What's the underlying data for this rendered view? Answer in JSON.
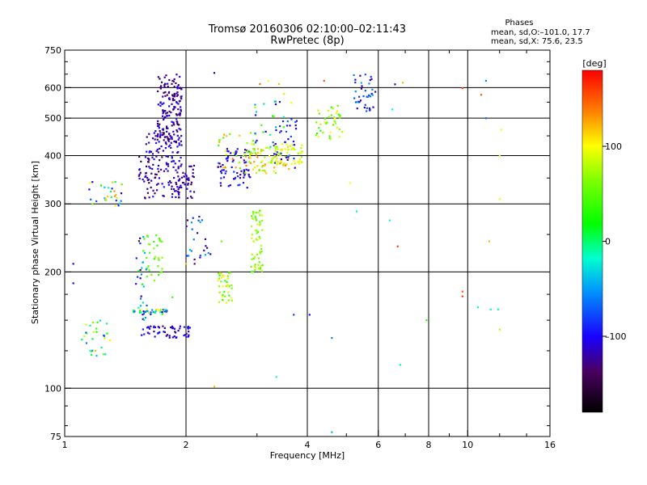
{
  "chart_data": {
    "type": "scatter",
    "title": "Tromsø 20160306 02:10:00–02:11:43",
    "subtitle": "RwPretec (8p)",
    "xlabel": "Frequency [MHz]",
    "ylabel": "Stationary phase Virtual Height [km]",
    "xscale": "log",
    "yscale": "log",
    "xlim": [
      1,
      16
    ],
    "ylim": [
      75,
      750
    ],
    "xticks": [
      1,
      2,
      4,
      6,
      8,
      10,
      16
    ],
    "xtick_labels": [
      "1",
      "2",
      "4",
      "6",
      "8",
      "10",
      "16"
    ],
    "xgrid": [
      2,
      4,
      6,
      8,
      10
    ],
    "yticks": [
      75,
      100,
      200,
      300,
      400,
      500,
      600,
      750
    ],
    "ytick_labels": [
      "75",
      "100",
      "200",
      "300",
      "400",
      "500",
      "600",
      "750"
    ],
    "ygrid": [
      100,
      200,
      300,
      400,
      500,
      600
    ],
    "grid": true,
    "phases_header": "Phases",
    "stats": [
      "mean, sd,O:–101.0, 17.7",
      "mean, sd,X:  75.6, 23.5"
    ],
    "colorbar": {
      "label": "[deg]",
      "range": [
        -180,
        180
      ],
      "ticks": [
        100,
        0,
        -100
      ],
      "tick_labels": [
        "100",
        "0",
        "–100"
      ]
    },
    "clusters": [
      {
        "x": [
          1.7,
          1.95
        ],
        "y": [
          430,
          650
        ],
        "n": 160,
        "phase": [
          -150,
          -95
        ]
      },
      {
        "x": [
          1.58,
          1.95
        ],
        "y": [
          310,
          470
        ],
        "n": 130,
        "phase": [
          -140,
          -90
        ]
      },
      {
        "x": [
          1.9,
          2.1
        ],
        "y": [
          310,
          380
        ],
        "n": 45,
        "phase": [
          -140,
          -100
        ]
      },
      {
        "x": [
          2.4,
          2.9
        ],
        "y": [
          330,
          420
        ],
        "n": 70,
        "phase": [
          -130,
          -80
        ]
      },
      {
        "x": [
          2.4,
          3.0
        ],
        "y": [
          370,
          460
        ],
        "n": 35,
        "phase": [
          40,
          140
        ]
      },
      {
        "x": [
          2.8,
          3.6
        ],
        "y": [
          360,
          420
        ],
        "n": 70,
        "phase": [
          50,
          140
        ]
      },
      {
        "x": [
          2.9,
          3.5
        ],
        "y": [
          420,
          560
        ],
        "n": 30,
        "phase": [
          -120,
          80
        ]
      },
      {
        "x": [
          3.3,
          3.9
        ],
        "y": [
          380,
          430
        ],
        "n": 50,
        "phase": [
          70,
          110
        ]
      },
      {
        "x": [
          3.3,
          3.8
        ],
        "y": [
          370,
          500
        ],
        "n": 30,
        "phase": [
          -130,
          -60
        ]
      },
      {
        "x": [
          4.2,
          4.9
        ],
        "y": [
          440,
          540
        ],
        "n": 40,
        "phase": [
          30,
          110
        ]
      },
      {
        "x": [
          5.2,
          5.9
        ],
        "y": [
          520,
          650
        ],
        "n": 40,
        "phase": [
          -130,
          -40
        ]
      },
      {
        "x": [
          2.9,
          3.1
        ],
        "y": [
          200,
          290
        ],
        "n": 60,
        "phase": [
          40,
          90
        ]
      },
      {
        "x": [
          2.4,
          2.6
        ],
        "y": [
          165,
          200
        ],
        "n": 40,
        "phase": [
          30,
          110
        ]
      },
      {
        "x": [
          1.55,
          1.75
        ],
        "y": [
          190,
          250
        ],
        "n": 35,
        "phase": [
          30,
          70
        ]
      },
      {
        "x": [
          1.45,
          1.8
        ],
        "y": [
          155,
          160
        ],
        "n": 40,
        "phase": [
          -120,
          120
        ]
      },
      {
        "x": [
          1.55,
          2.05
        ],
        "y": [
          135,
          145
        ],
        "n": 55,
        "phase": [
          -130,
          -90
        ]
      },
      {
        "x": [
          1.5,
          1.6
        ],
        "y": [
          150,
          250
        ],
        "n": 30,
        "phase": [
          -140,
          30
        ]
      },
      {
        "x": [
          1.1,
          1.3
        ],
        "y": [
          120,
          150
        ],
        "n": 30,
        "phase": [
          -80,
          120
        ]
      },
      {
        "x": [
          1.15,
          1.4
        ],
        "y": [
          295,
          345
        ],
        "n": 30,
        "phase": [
          -120,
          140
        ]
      },
      {
        "x": [
          2.0,
          2.3
        ],
        "y": [
          210,
          280
        ],
        "n": 25,
        "phase": [
          -140,
          -40
        ]
      },
      {
        "x": [
          1.5,
          1.7
        ],
        "y": [
          340,
          400
        ],
        "n": 20,
        "phase": [
          -150,
          -100
        ]
      }
    ],
    "points": [
      [
        2.35,
        655,
        -120
      ],
      [
        2.35,
        101,
        120
      ],
      [
        1.05,
        210,
        -110
      ],
      [
        1.05,
        187,
        -110
      ],
      [
        3.35,
        107,
        -20
      ],
      [
        3.7,
        155,
        -80
      ],
      [
        4.05,
        155,
        -100
      ],
      [
        4.6,
        135,
        -60
      ],
      [
        4.6,
        77,
        -40
      ],
      [
        5.1,
        340,
        100
      ],
      [
        5.3,
        287,
        -10
      ],
      [
        6.4,
        272,
        -20
      ],
      [
        6.7,
        233,
        160
      ],
      [
        6.8,
        115,
        -10
      ],
      [
        6.6,
        612,
        -120
      ],
      [
        6.9,
        618,
        120
      ],
      [
        7.9,
        150,
        30
      ],
      [
        9.7,
        598,
        160
      ],
      [
        9.7,
        178,
        150
      ],
      [
        9.7,
        173,
        160
      ],
      [
        10.6,
        162,
        -10
      ],
      [
        10.8,
        575,
        150
      ],
      [
        11.1,
        625,
        -60
      ],
      [
        11.1,
        500,
        -70
      ],
      [
        11.3,
        240,
        120
      ],
      [
        12.0,
        400,
        90
      ],
      [
        12.0,
        309,
        100
      ],
      [
        12.1,
        467,
        100
      ],
      [
        11.9,
        160,
        -10
      ],
      [
        11.4,
        160,
        -20
      ],
      [
        12.0,
        142,
        80
      ],
      [
        4.4,
        625,
        150
      ],
      [
        3.4,
        613,
        120
      ],
      [
        3.2,
        624,
        100
      ],
      [
        3.05,
        613,
        140
      ],
      [
        3.5,
        578,
        110
      ],
      [
        3.65,
        548,
        100
      ],
      [
        6.5,
        527,
        -20
      ],
      [
        2.0,
        210,
        120
      ],
      [
        2.1,
        210,
        -130
      ],
      [
        2.45,
        240,
        60
      ],
      [
        1.85,
        172,
        40
      ]
    ]
  }
}
